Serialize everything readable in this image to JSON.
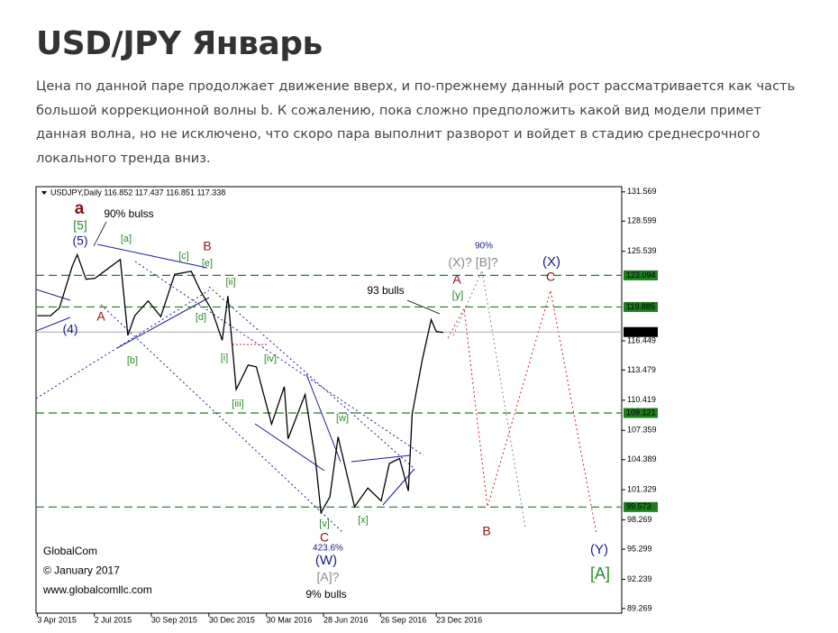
{
  "header": {
    "title": "USD/JPY Январь",
    "paragraph": "Цена по данной паре продолжает движение вверх, и по-прежнему данный рост рассматривается как часть большой коррекционной волны b. К сожалению, пока сложно предположить какой вид модели примет данная волна, но не исключено, что скоро пара выполнит разворот и войдет в стадию среднесрочного локального тренда вниз."
  },
  "chart_data": {
    "type": "line",
    "symbol_info": "USDJPY,Daily  116.852 117.437 116.851 117.338",
    "color": "#000000",
    "x": [
      "2015-04-03",
      "2015-04-24",
      "2015-05-08",
      "2015-05-28",
      "2015-06-05",
      "2015-06-19",
      "2015-07-03",
      "2015-07-24",
      "2015-08-12",
      "2015-08-24",
      "2015-09-04",
      "2015-09-25",
      "2015-10-15",
      "2015-11-06",
      "2015-12-02",
      "2015-12-16",
      "2016-01-04",
      "2016-01-20",
      "2016-01-29",
      "2016-02-11",
      "2016-03-01",
      "2016-03-14",
      "2016-04-07",
      "2016-04-27",
      "2016-05-03",
      "2016-05-30",
      "2016-06-16",
      "2016-06-24",
      "2016-07-08",
      "2016-07-21",
      "2016-08-16",
      "2016-09-06",
      "2016-09-27",
      "2016-10-10",
      "2016-10-26",
      "2016-11-09",
      "2016-11-15",
      "2016-12-01",
      "2016-12-15",
      "2016-12-23",
      "2017-01-03"
    ],
    "values": [
      119.0,
      119.0,
      119.8,
      124.0,
      125.2,
      122.7,
      122.8,
      123.8,
      124.7,
      117.0,
      119.0,
      120.5,
      118.9,
      123.2,
      123.5,
      121.6,
      119.5,
      116.5,
      121.0,
      111.5,
      114.0,
      113.8,
      108.0,
      111.8,
      106.5,
      111.0,
      104.0,
      99.0,
      100.6,
      106.7,
      99.6,
      101.5,
      100.2,
      104.0,
      104.5,
      101.2,
      109.0,
      114.5,
      118.6,
      117.4,
      117.3
    ],
    "xlim": [
      "2015-04-01",
      "2017-10-12"
    ],
    "xticks": [
      {
        "value": "2015-04-03",
        "label": "3 Apr 2015"
      },
      {
        "value": "2015-07-02",
        "label": "2 Jul 2015"
      },
      {
        "value": "2015-09-30",
        "label": "30 Sep 2015"
      },
      {
        "value": "2015-12-30",
        "label": "30 Dec 2015"
      },
      {
        "value": "2016-03-30",
        "label": "30 Mar 2016"
      },
      {
        "value": "2016-06-28",
        "label": "28 Jun 2016"
      },
      {
        "value": "2016-09-26",
        "label": "26 Sep 2016"
      },
      {
        "value": "2016-12-23",
        "label": "23 Dec 2016"
      }
    ],
    "ylim": [
      88.8,
      132.1
    ],
    "yticks": [
      131.569,
      128.599,
      125.539,
      116.449,
      113.479,
      110.419,
      107.359,
      104.389,
      101.329,
      98.269,
      95.299,
      92.239,
      89.269
    ],
    "levels": [
      {
        "value": 123.094,
        "color": "#1e7d1e"
      },
      {
        "value": 119.885,
        "color": "#1e7d1e"
      },
      {
        "value": 109.121,
        "color": "#1e7d1e"
      },
      {
        "value": 99.573,
        "color": "#1e7d1e"
      }
    ],
    "last_price": 117.338,
    "annotations": [
      {
        "text": "a",
        "color": "#8b1010"
      },
      {
        "text": "[5]",
        "color": "#2a8a2a"
      },
      {
        "text": "(5)",
        "color": "#1a1a8c"
      },
      {
        "text": "90% bulss",
        "color": "#000000"
      },
      {
        "text": "[a]",
        "color": "#2a8a2a"
      },
      {
        "text": "[c]",
        "color": "#2a8a2a"
      },
      {
        "text": "B",
        "color": "#8b1010"
      },
      {
        "text": "[e]",
        "color": "#2a8a2a"
      },
      {
        "text": "[ii]",
        "color": "#2a8a2a"
      },
      {
        "text": "A",
        "color": "#8b1010"
      },
      {
        "text": "[d]",
        "color": "#2a8a2a"
      },
      {
        "text": "(4)",
        "color": "#1a1a8c"
      },
      {
        "text": "[b]",
        "color": "#2a8a2a"
      },
      {
        "text": "[i]",
        "color": "#2a8a2a"
      },
      {
        "text": "[iv]",
        "color": "#2a8a2a"
      },
      {
        "text": "[iii]",
        "color": "#2a8a2a"
      },
      {
        "text": "[w]",
        "color": "#2a8a2a"
      },
      {
        "text": "[v]",
        "color": "#2a8a2a"
      },
      {
        "text": "[x]",
        "color": "#2a8a2a"
      },
      {
        "text": "C",
        "color": "#8b1010"
      },
      {
        "text": "423.6%",
        "color": "#1a1a8c"
      },
      {
        "text": "(W)",
        "color": "#1a1a8c"
      },
      {
        "text": "[A]?",
        "color": "#888888"
      },
      {
        "text": "9% bulls",
        "color": "#000000"
      },
      {
        "text": "93 bulls",
        "color": "#000000"
      },
      {
        "text": "(X)? [B]?",
        "color": "#888888"
      },
      {
        "text": "90%",
        "color": "#1a1a8c"
      },
      {
        "text": "A",
        "color": "#8b1010"
      },
      {
        "text": "[y]",
        "color": "#2a8a2a"
      },
      {
        "text": "(X)",
        "color": "#1a1a8c"
      },
      {
        "text": "C",
        "color": "#8b1010"
      },
      {
        "text": "B",
        "color": "#8b1010"
      },
      {
        "text": "(Y)",
        "color": "#1a1a8c"
      },
      {
        "text": "[A]",
        "color": "#2a8a2a"
      }
    ],
    "footer": [
      "GlobalCom",
      "© January 2017",
      "www.globalcomllc.com"
    ]
  }
}
